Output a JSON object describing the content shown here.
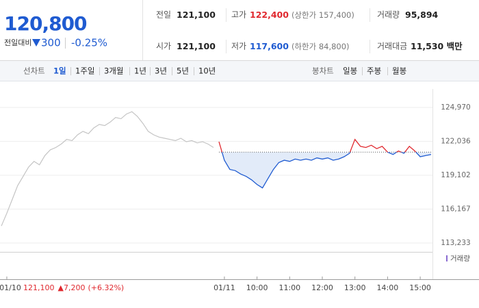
{
  "header": {
    "price": "120,800",
    "change_label": "전일대비",
    "change": "300",
    "change_pct": "-0.25%"
  },
  "stats": [
    {
      "label": "전일",
      "value": "121,100"
    },
    {
      "label": "시가",
      "value": "121,100"
    },
    {
      "label": "고가",
      "value": "122,400",
      "sub": "(상한가 157,400)"
    },
    {
      "label": "저가",
      "value": "117,600",
      "sub": "(하한가 84,800)"
    },
    {
      "label": "거래량",
      "value": "95,894"
    },
    {
      "label": "거래대금",
      "value": "11,530 백만"
    }
  ],
  "tabs": {
    "line_label": "선차트",
    "line_periods": [
      "1일",
      "1주일",
      "3개월",
      "1년",
      "3년",
      "5년",
      "10년"
    ],
    "candle_label": "봉차트",
    "candle_periods": [
      "일봉",
      "주봉",
      "월봉"
    ]
  },
  "prev_day": {
    "price": "121,100",
    "change": "7,200",
    "change_pct": "(+6.32%)"
  },
  "volume_label": "거래량",
  "chart_data": {
    "type": "line",
    "categories": [
      null,
      "01/10",
      null,
      null,
      null,
      null,
      null,
      null,
      null,
      null,
      null,
      null,
      null,
      null,
      null,
      null,
      null,
      null,
      null,
      null,
      null,
      null,
      null,
      null,
      null,
      null,
      null,
      null,
      null,
      null,
      null,
      null,
      null,
      null,
      null,
      null,
      null,
      null,
      null,
      null,
      null,
      "01/11",
      null,
      null,
      null,
      null,
      null,
      "10:00",
      null,
      null,
      null,
      null,
      null,
      "11:00",
      null,
      null,
      null,
      null,
      null,
      "12:00",
      null,
      null,
      null,
      null,
      null,
      "13:00",
      null,
      null,
      null,
      null,
      null,
      "14:00",
      null,
      null,
      null,
      null,
      null,
      "15:00",
      null,
      null
    ],
    "series": [
      {
        "color": "#c4c4c4",
        "values": [
          114700,
          115800,
          117000,
          118200,
          119000,
          119800,
          120300,
          120000,
          120800,
          121300,
          121500,
          121800,
          122200,
          122100,
          122600,
          122900,
          122700,
          123200,
          123500,
          123400,
          123700,
          124100,
          124000,
          124400,
          124600,
          124200,
          123600,
          122900,
          122600,
          122400,
          122300,
          122200,
          122100,
          122300,
          122000,
          122100,
          121900,
          122000,
          121800,
          121500,
          null,
          null,
          null,
          null,
          null,
          null,
          null,
          null,
          null,
          null,
          null,
          null,
          null,
          null,
          null,
          null,
          null,
          null,
          null,
          null,
          null,
          null,
          null,
          null,
          null,
          null,
          null,
          null,
          null,
          null,
          null,
          null,
          null,
          null,
          null,
          null,
          null,
          null,
          null,
          null
        ]
      },
      {
        "color": "#1f5bd1",
        "values": [
          null,
          null,
          null,
          null,
          null,
          null,
          null,
          null,
          null,
          null,
          null,
          null,
          null,
          null,
          null,
          null,
          null,
          null,
          null,
          null,
          null,
          null,
          null,
          null,
          null,
          null,
          null,
          null,
          null,
          null,
          null,
          null,
          null,
          null,
          null,
          null,
          null,
          null,
          null,
          null,
          122000,
          120400,
          119600,
          119500,
          119200,
          119000,
          118700,
          118300,
          118000,
          118800,
          119600,
          120200,
          120400,
          120300,
          120500,
          120400,
          120500,
          120400,
          120600,
          120500,
          120600,
          120400,
          120500,
          120700,
          121000,
          122200,
          121600,
          121500,
          121700,
          121400,
          121600,
          121100,
          120900,
          121200,
          121000,
          121600,
          121200,
          120700,
          120800,
          120900
        ]
      }
    ],
    "up_color": "#e0282e",
    "reference_line": 121100,
    "ylim": [
      112640,
      126570
    ],
    "yticks": [
      {
        "value": 113233,
        "label": "113,233"
      },
      {
        "value": 116167,
        "label": "116,167"
      },
      {
        "value": 119102,
        "label": "119,102"
      },
      {
        "value": 122036,
        "label": "122,036"
      },
      {
        "value": 124970,
        "label": "124,970"
      }
    ],
    "grid": true
  }
}
